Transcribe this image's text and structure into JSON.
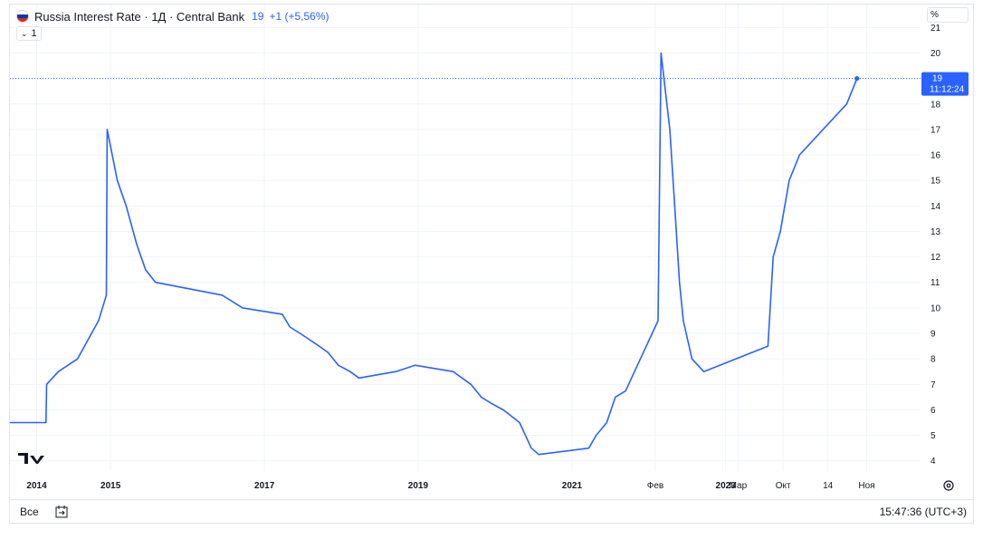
{
  "legend": {
    "title": "Russia Interest Rate · 1Д · Central Bank",
    "value": "19",
    "change": "+1 (+5,56%)"
  },
  "collapse": {
    "label": "1"
  },
  "unit": {
    "label": "%"
  },
  "price_label": {
    "value": "19",
    "time": "11:12:24"
  },
  "bottom": {
    "all_label": "Все",
    "clock": "15:47:36 (UTC+3)"
  },
  "colors": {
    "line": "#2962ff",
    "grid": "#f0f3fa",
    "flag_white": "#ffffff",
    "flag_blue": "#0039a6",
    "flag_red": "#d52b1e"
  },
  "chart_data": {
    "type": "line",
    "title": "Russia Interest Rate · 1Д · Central Bank",
    "xlabel": "",
    "ylabel": "%",
    "ylim": [
      3.6,
      21.9
    ],
    "xlim": [
      "2013-09-10",
      "2025-07-15"
    ],
    "y_ticks": [
      4,
      5,
      6,
      7,
      8,
      9,
      10,
      11,
      12,
      13,
      14,
      15,
      16,
      17,
      18,
      19,
      20,
      21
    ],
    "x_ticks": [
      {
        "date": "2014-01-15",
        "label": "2014",
        "bold": true
      },
      {
        "date": "2015-01-01",
        "label": "2015",
        "bold": true
      },
      {
        "date": "2017-01-01",
        "label": "2017",
        "bold": true
      },
      {
        "date": "2019-01-01",
        "label": "2019",
        "bold": true
      },
      {
        "date": "2021-01-01",
        "label": "2021",
        "bold": true
      },
      {
        "date": "2022-02-01",
        "label": "Фев",
        "bold": false
      },
      {
        "date": "2023-01-01",
        "label": "2023",
        "bold": true
      },
      {
        "date": "2023-03-01",
        "label": "Мар",
        "bold": false
      },
      {
        "date": "2023-10-01",
        "label": "Окт",
        "bold": false
      },
      {
        "date": "2024-05-01",
        "label": "14",
        "bold": false
      },
      {
        "date": "2024-11-01",
        "label": "Ноя",
        "bold": false
      }
    ],
    "grid": true,
    "series": [
      {
        "points": [
          [
            "2013-09-10",
            5.5
          ],
          [
            "2014-02-28",
            5.5
          ],
          [
            "2014-03-03",
            7.0
          ],
          [
            "2014-04-28",
            7.5
          ],
          [
            "2014-07-28",
            8.0
          ],
          [
            "2014-11-05",
            9.5
          ],
          [
            "2014-12-12",
            10.5
          ],
          [
            "2014-12-16",
            17.0
          ],
          [
            "2015-02-02",
            15.0
          ],
          [
            "2015-03-16",
            14.0
          ],
          [
            "2015-05-05",
            12.5
          ],
          [
            "2015-06-16",
            11.5
          ],
          [
            "2015-08-03",
            11.0
          ],
          [
            "2016-06-14",
            10.5
          ],
          [
            "2016-09-19",
            10.0
          ],
          [
            "2017-03-27",
            9.75
          ],
          [
            "2017-05-02",
            9.25
          ],
          [
            "2017-06-19",
            9.0
          ],
          [
            "2017-09-18",
            8.5
          ],
          [
            "2017-10-30",
            8.25
          ],
          [
            "2017-12-18",
            7.75
          ],
          [
            "2018-02-12",
            7.5
          ],
          [
            "2018-03-26",
            7.25
          ],
          [
            "2018-09-17",
            7.5
          ],
          [
            "2018-12-17",
            7.75
          ],
          [
            "2019-06-17",
            7.5
          ],
          [
            "2019-07-29",
            7.25
          ],
          [
            "2019-09-09",
            7.0
          ],
          [
            "2019-10-28",
            6.5
          ],
          [
            "2019-12-16",
            6.25
          ],
          [
            "2020-02-10",
            6.0
          ],
          [
            "2020-04-27",
            5.5
          ],
          [
            "2020-06-22",
            4.5
          ],
          [
            "2020-07-27",
            4.25
          ],
          [
            "2021-03-22",
            4.5
          ],
          [
            "2021-04-26",
            5.0
          ],
          [
            "2021-06-15",
            5.5
          ],
          [
            "2021-07-26",
            6.5
          ],
          [
            "2021-09-13",
            6.75
          ],
          [
            "2021-10-25",
            7.5
          ],
          [
            "2021-12-20",
            8.5
          ],
          [
            "2022-02-14",
            9.5
          ],
          [
            "2022-02-28",
            20.0
          ],
          [
            "2022-04-11",
            17.0
          ],
          [
            "2022-05-04",
            14.0
          ],
          [
            "2022-05-27",
            11.0
          ],
          [
            "2022-06-14",
            9.5
          ],
          [
            "2022-07-25",
            8.0
          ],
          [
            "2022-09-19",
            7.5
          ],
          [
            "2023-07-21",
            8.5
          ],
          [
            "2023-08-15",
            12.0
          ],
          [
            "2023-09-18",
            13.0
          ],
          [
            "2023-10-30",
            15.0
          ],
          [
            "2023-12-18",
            16.0
          ],
          [
            "2024-07-29",
            18.0
          ],
          [
            "2024-09-16",
            19.0
          ]
        ]
      }
    ]
  }
}
